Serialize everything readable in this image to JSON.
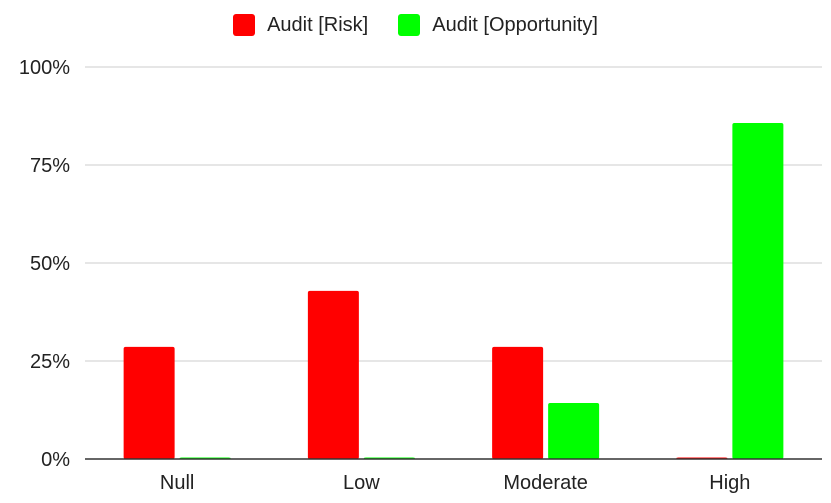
{
  "chart_data": {
    "type": "bar",
    "categories": [
      "Null",
      "Low",
      "Moderate",
      "High"
    ],
    "series": [
      {
        "name": "Audit [Risk]",
        "color": "#ff0000",
        "values": [
          28.6,
          42.9,
          28.6,
          0
        ]
      },
      {
        "name": "Audit [Opportunity]",
        "color": "#00ff00",
        "values": [
          0,
          0,
          14.3,
          85.7
        ]
      }
    ],
    "y_ticks": [
      "0%",
      "25%",
      "50%",
      "75%",
      "100%"
    ],
    "ylim": [
      0,
      100
    ],
    "grid": true,
    "legend_position": "top"
  }
}
